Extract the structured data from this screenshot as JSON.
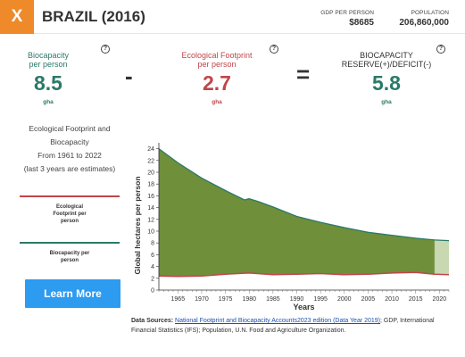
{
  "header": {
    "close_label": "X",
    "title": "BRAZIL (2016)",
    "gdp_label": "GDP PER PERSON",
    "gdp_value": "$8685",
    "population_label": "POPULATION",
    "population_value": "206,860,000"
  },
  "metrics": {
    "biocapacity": {
      "label_line1": "Biocapacity",
      "label_line2": "per person",
      "value": "8.5",
      "unit": "gha"
    },
    "minus": "-",
    "footprint": {
      "label_line1": "Ecological Footprint",
      "label_line2": "per person",
      "value": "2.7",
      "unit": "gha"
    },
    "equals": "=",
    "reserve": {
      "label_line1": "BIOCAPACITY",
      "label_line2": "RESERVE(+)/DEFICIT(-)",
      "value": "5.8",
      "unit": "gha"
    },
    "help_glyph": "?"
  },
  "sidebar": {
    "desc_line1": "Ecological Footprint and",
    "desc_line2": "Biocapacity",
    "desc_line3": "From 1961 to 2022",
    "desc_line4": "(last 3 years are estimates)",
    "legend_footprint_line1": "Ecological",
    "legend_footprint_line2": "Footprint per",
    "legend_footprint_line3": "person",
    "legend_biocapacity_line1": "Biocapacity per",
    "legend_biocapacity_line2": "person",
    "learn_more": "Learn More"
  },
  "colors": {
    "accent": "#ef8a2a",
    "biocapacity": "#2a7a68",
    "footprint": "#c0464b",
    "area_fill": "#6f8f3a",
    "button": "#2d9bf0"
  },
  "chart_data": {
    "type": "area",
    "xlabel": "Years",
    "ylabel": "Global hectares per person",
    "xlim": [
      1961,
      2022
    ],
    "ylim": [
      0,
      25
    ],
    "x_ticks": [
      1965,
      1970,
      1975,
      1980,
      1985,
      1990,
      1995,
      2000,
      2005,
      2010,
      2015,
      2020
    ],
    "y_ticks": [
      0,
      2,
      4,
      6,
      8,
      10,
      12,
      14,
      16,
      18,
      20,
      22,
      24
    ],
    "estimate_start": 2019,
    "series": [
      {
        "name": "Biocapacity per person",
        "x": [
          1961,
          1965,
          1970,
          1975,
          1979,
          1980,
          1982,
          1985,
          1990,
          1995,
          2000,
          2005,
          2010,
          2015,
          2019,
          2022
        ],
        "values": [
          24.0,
          21.6,
          19.0,
          16.9,
          15.3,
          15.5,
          15.0,
          14.1,
          12.5,
          11.5,
          10.6,
          9.8,
          9.3,
          8.8,
          8.5,
          8.4
        ]
      },
      {
        "name": "Ecological Footprint per person",
        "x": [
          1961,
          1965,
          1970,
          1975,
          1980,
          1985,
          1990,
          1995,
          2000,
          2005,
          2010,
          2015,
          2019,
          2022
        ],
        "values": [
          2.4,
          2.3,
          2.4,
          2.7,
          2.9,
          2.6,
          2.7,
          2.8,
          2.6,
          2.7,
          2.9,
          3.0,
          2.7,
          2.6
        ]
      }
    ]
  },
  "sources": {
    "label": "Data Sources:",
    "link": "National Footprint and Biocapacity Accounts2023 edition (Data Year 2019)",
    "rest": "; GDP, International Financial Statistics (IFS); Population, U.N. Food and Agriculture Organization."
  }
}
